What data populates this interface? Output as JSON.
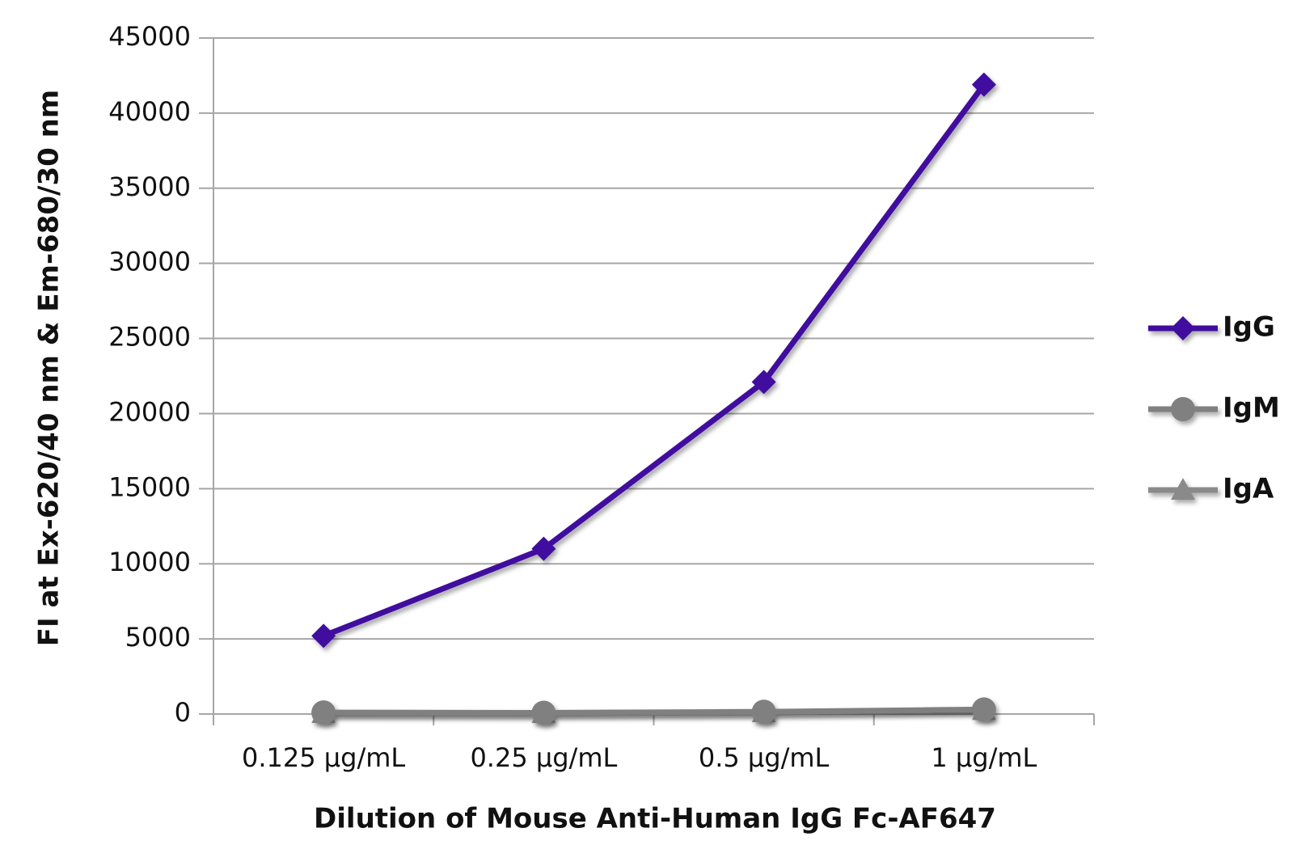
{
  "chart_data": {
    "type": "line",
    "x_label": "Dilution of Mouse Anti-Human IgG Fc-AF647",
    "y_label": "FI at Ex-620/40 nm & Em-680/30 nm",
    "categories": [
      "0.125 µg/mL",
      "0.25 µg/mL",
      "0.5 µg/mL",
      "1 µg/mL"
    ],
    "series": [
      {
        "name": "IgG",
        "color": "#3f0c9e",
        "marker": "diamond",
        "values": [
          5200,
          11000,
          22100,
          41900
        ]
      },
      {
        "name": "IgM",
        "color": "#808080",
        "marker": "circle",
        "values": [
          100,
          80,
          150,
          300
        ]
      },
      {
        "name": "IgA",
        "color": "#8a8a8a",
        "marker": "triangle",
        "values": [
          50,
          50,
          100,
          250
        ]
      }
    ],
    "ylim": [
      0,
      45000
    ],
    "yticks": [
      0,
      5000,
      10000,
      15000,
      20000,
      25000,
      30000,
      35000,
      40000,
      45000
    ],
    "grid": true,
    "legend": "right"
  }
}
